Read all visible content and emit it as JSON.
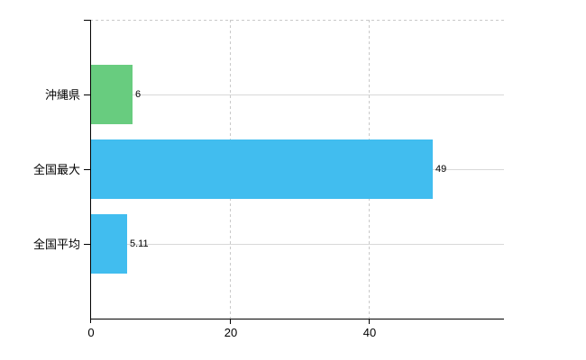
{
  "chart_data": {
    "type": "bar",
    "orientation": "horizontal",
    "title": "",
    "categories": [
      "沖縄県",
      "全国最大",
      "全国平均"
    ],
    "values": [
      6,
      49,
      5.11
    ],
    "value_labels": [
      "6",
      "49",
      "5.11"
    ],
    "bar_colors": [
      "#68CC7F",
      "#41BDEF",
      "#41BDEF"
    ],
    "xticks": [
      0,
      20,
      40
    ],
    "xtick_labels": [
      "0",
      "20",
      "40"
    ],
    "xlim": [
      0,
      59.2
    ],
    "xlabel": "",
    "ylabel": "",
    "grid": "on",
    "legend": "none",
    "axis_color": "#000000",
    "category_gridline_color": "#d8d8d8",
    "dashed_gridline_color": "#c9c9c9",
    "background_color": "#ffffff",
    "text_color": "#000000"
  }
}
